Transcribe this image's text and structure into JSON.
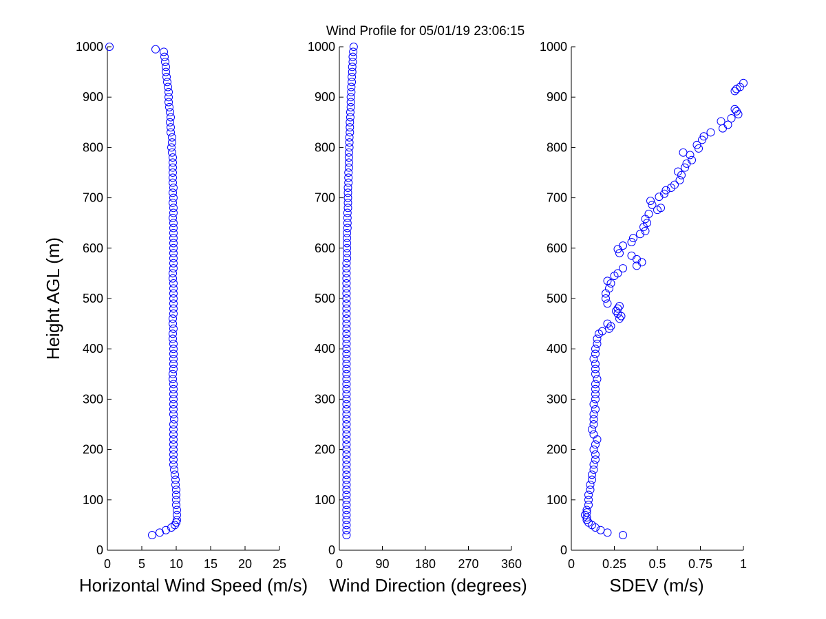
{
  "title": "Wind Profile for  05/01/19 23:06:15",
  "colors": {
    "marker": "#0000ff",
    "axis": "#000000",
    "background": "#ffffff"
  },
  "chart_data": [
    {
      "type": "scatter",
      "id": "speed",
      "xlabel": "Horizontal Wind Speed (m/s)",
      "ylabel": "Height AGL (m)",
      "xlim": [
        0,
        25
      ],
      "ylim": [
        0,
        1000
      ],
      "xticks": [
        "0",
        "5",
        "10",
        "15",
        "20",
        "25"
      ],
      "yticks": [
        "0",
        "100",
        "200",
        "300",
        "400",
        "500",
        "600",
        "700",
        "800",
        "900",
        "1000"
      ],
      "grid": false,
      "marker": "open-circle",
      "points": [
        [
          6.5,
          30
        ],
        [
          7.6,
          35
        ],
        [
          8.5,
          40
        ],
        [
          9.3,
          45
        ],
        [
          9.8,
          50
        ],
        [
          10.0,
          55
        ],
        [
          10.1,
          60
        ],
        [
          10.1,
          70
        ],
        [
          10.1,
          80
        ],
        [
          10.0,
          90
        ],
        [
          10.0,
          100
        ],
        [
          10.0,
          110
        ],
        [
          10.0,
          120
        ],
        [
          9.9,
          130
        ],
        [
          9.9,
          140
        ],
        [
          9.8,
          150
        ],
        [
          9.7,
          160
        ],
        [
          9.6,
          170
        ],
        [
          9.6,
          180
        ],
        [
          9.6,
          190
        ],
        [
          9.6,
          200
        ],
        [
          9.6,
          210
        ],
        [
          9.6,
          220
        ],
        [
          9.6,
          230
        ],
        [
          9.6,
          240
        ],
        [
          9.6,
          250
        ],
        [
          9.7,
          260
        ],
        [
          9.6,
          270
        ],
        [
          9.6,
          280
        ],
        [
          9.6,
          290
        ],
        [
          9.6,
          300
        ],
        [
          9.6,
          310
        ],
        [
          9.6,
          320
        ],
        [
          9.6,
          330
        ],
        [
          9.5,
          340
        ],
        [
          9.5,
          350
        ],
        [
          9.6,
          360
        ],
        [
          9.6,
          370
        ],
        [
          9.6,
          380
        ],
        [
          9.6,
          390
        ],
        [
          9.6,
          400
        ],
        [
          9.6,
          410
        ],
        [
          9.5,
          420
        ],
        [
          9.5,
          430
        ],
        [
          9.6,
          440
        ],
        [
          9.5,
          450
        ],
        [
          9.5,
          460
        ],
        [
          9.6,
          470
        ],
        [
          9.6,
          480
        ],
        [
          9.6,
          490
        ],
        [
          9.6,
          500
        ],
        [
          9.6,
          510
        ],
        [
          9.6,
          520
        ],
        [
          9.6,
          530
        ],
        [
          9.5,
          540
        ],
        [
          9.5,
          550
        ],
        [
          9.6,
          560
        ],
        [
          9.6,
          570
        ],
        [
          9.6,
          580
        ],
        [
          9.6,
          590
        ],
        [
          9.6,
          600
        ],
        [
          9.6,
          610
        ],
        [
          9.6,
          620
        ],
        [
          9.6,
          630
        ],
        [
          9.6,
          640
        ],
        [
          9.6,
          650
        ],
        [
          9.5,
          660
        ],
        [
          9.6,
          670
        ],
        [
          9.6,
          680
        ],
        [
          9.5,
          690
        ],
        [
          9.6,
          700
        ],
        [
          9.5,
          710
        ],
        [
          9.6,
          720
        ],
        [
          9.5,
          730
        ],
        [
          9.5,
          740
        ],
        [
          9.5,
          750
        ],
        [
          9.5,
          760
        ],
        [
          9.5,
          770
        ],
        [
          9.5,
          780
        ],
        [
          9.4,
          790
        ],
        [
          9.3,
          800
        ],
        [
          9.4,
          810
        ],
        [
          9.4,
          820
        ],
        [
          9.2,
          830
        ],
        [
          9.2,
          840
        ],
        [
          9.1,
          850
        ],
        [
          9.2,
          860
        ],
        [
          9.1,
          870
        ],
        [
          9.0,
          880
        ],
        [
          8.9,
          890
        ],
        [
          8.9,
          900
        ],
        [
          8.9,
          910
        ],
        [
          8.8,
          920
        ],
        [
          8.7,
          930
        ],
        [
          8.6,
          940
        ],
        [
          8.5,
          950
        ],
        [
          8.5,
          960
        ],
        [
          8.4,
          970
        ],
        [
          8.3,
          980
        ],
        [
          8.2,
          990
        ],
        [
          7.0,
          995
        ],
        [
          0.3,
          1000
        ]
      ]
    },
    {
      "type": "scatter",
      "id": "direction",
      "xlabel": "Wind Direction (degrees)",
      "ylabel": "",
      "xlim": [
        0,
        360
      ],
      "ylim": [
        0,
        1000
      ],
      "xticks": [
        "0",
        "90",
        "180",
        "270",
        "360"
      ],
      "yticks": [
        "0",
        "100",
        "200",
        "300",
        "400",
        "500",
        "600",
        "700",
        "800",
        "900",
        "1000"
      ],
      "grid": false,
      "marker": "open-circle",
      "points": [
        [
          15,
          30
        ],
        [
          15,
          40
        ],
        [
          15,
          50
        ],
        [
          15,
          60
        ],
        [
          15,
          70
        ],
        [
          15,
          80
        ],
        [
          15,
          90
        ],
        [
          15,
          100
        ],
        [
          15,
          110
        ],
        [
          15,
          120
        ],
        [
          15,
          130
        ],
        [
          15,
          140
        ],
        [
          15,
          150
        ],
        [
          15,
          160
        ],
        [
          15,
          170
        ],
        [
          15,
          180
        ],
        [
          15,
          190
        ],
        [
          15,
          200
        ],
        [
          15,
          210
        ],
        [
          15,
          220
        ],
        [
          15,
          230
        ],
        [
          15,
          240
        ],
        [
          15,
          250
        ],
        [
          15,
          260
        ],
        [
          15,
          270
        ],
        [
          15,
          280
        ],
        [
          15,
          290
        ],
        [
          15,
          300
        ],
        [
          15,
          310
        ],
        [
          15,
          320
        ],
        [
          15,
          330
        ],
        [
          15,
          340
        ],
        [
          15,
          350
        ],
        [
          15,
          360
        ],
        [
          15,
          370
        ],
        [
          15,
          380
        ],
        [
          15,
          390
        ],
        [
          15,
          400
        ],
        [
          15,
          410
        ],
        [
          15,
          420
        ],
        [
          15,
          430
        ],
        [
          15,
          440
        ],
        [
          15,
          450
        ],
        [
          15,
          460
        ],
        [
          15,
          470
        ],
        [
          15,
          480
        ],
        [
          15,
          490
        ],
        [
          15,
          500
        ],
        [
          15,
          510
        ],
        [
          15,
          520
        ],
        [
          15,
          530
        ],
        [
          15,
          540
        ],
        [
          15,
          550
        ],
        [
          15,
          560
        ],
        [
          15,
          570
        ],
        [
          16,
          580
        ],
        [
          16,
          590
        ],
        [
          16,
          600
        ],
        [
          16,
          610
        ],
        [
          16,
          620
        ],
        [
          16,
          630
        ],
        [
          17,
          640
        ],
        [
          17,
          650
        ],
        [
          17,
          660
        ],
        [
          17,
          670
        ],
        [
          18,
          680
        ],
        [
          18,
          690
        ],
        [
          18,
          700
        ],
        [
          18,
          710
        ],
        [
          18,
          720
        ],
        [
          19,
          730
        ],
        [
          19,
          740
        ],
        [
          19,
          750
        ],
        [
          20,
          760
        ],
        [
          20,
          770
        ],
        [
          20,
          780
        ],
        [
          20,
          790
        ],
        [
          21,
          800
        ],
        [
          21,
          810
        ],
        [
          21,
          820
        ],
        [
          22,
          830
        ],
        [
          22,
          840
        ],
        [
          22,
          850
        ],
        [
          23,
          860
        ],
        [
          23,
          870
        ],
        [
          24,
          880
        ],
        [
          24,
          890
        ],
        [
          24,
          900
        ],
        [
          25,
          910
        ],
        [
          25,
          920
        ],
        [
          26,
          930
        ],
        [
          26,
          940
        ],
        [
          27,
          950
        ],
        [
          27,
          960
        ],
        [
          28,
          970
        ],
        [
          28,
          980
        ],
        [
          29,
          990
        ],
        [
          30,
          1000
        ]
      ]
    },
    {
      "type": "scatter",
      "id": "sdev",
      "xlabel": "SDEV  (m/s)",
      "ylabel": "",
      "xlim": [
        0,
        1
      ],
      "ylim": [
        0,
        1000
      ],
      "xticks": [
        "0",
        "0.25",
        "0.5",
        "0.75",
        "1"
      ],
      "yticks": [
        "0",
        "100",
        "200",
        "300",
        "400",
        "500",
        "600",
        "700",
        "800",
        "900",
        "1000"
      ],
      "grid": false,
      "marker": "open-circle",
      "points": [
        [
          0.3,
          30
        ],
        [
          0.21,
          35
        ],
        [
          0.17,
          40
        ],
        [
          0.14,
          45
        ],
        [
          0.12,
          50
        ],
        [
          0.1,
          55
        ],
        [
          0.09,
          60
        ],
        [
          0.09,
          65
        ],
        [
          0.08,
          70
        ],
        [
          0.09,
          75
        ],
        [
          0.09,
          80
        ],
        [
          0.1,
          90
        ],
        [
          0.1,
          100
        ],
        [
          0.1,
          110
        ],
        [
          0.11,
          120
        ],
        [
          0.11,
          130
        ],
        [
          0.12,
          140
        ],
        [
          0.12,
          150
        ],
        [
          0.13,
          160
        ],
        [
          0.13,
          170
        ],
        [
          0.14,
          180
        ],
        [
          0.14,
          190
        ],
        [
          0.13,
          200
        ],
        [
          0.14,
          210
        ],
        [
          0.15,
          220
        ],
        [
          0.13,
          230
        ],
        [
          0.12,
          240
        ],
        [
          0.13,
          250
        ],
        [
          0.13,
          260
        ],
        [
          0.13,
          270
        ],
        [
          0.14,
          280
        ],
        [
          0.13,
          290
        ],
        [
          0.14,
          300
        ],
        [
          0.14,
          310
        ],
        [
          0.14,
          320
        ],
        [
          0.14,
          330
        ],
        [
          0.15,
          340
        ],
        [
          0.14,
          350
        ],
        [
          0.14,
          360
        ],
        [
          0.14,
          370
        ],
        [
          0.13,
          380
        ],
        [
          0.14,
          390
        ],
        [
          0.14,
          400
        ],
        [
          0.15,
          410
        ],
        [
          0.15,
          420
        ],
        [
          0.16,
          430
        ],
        [
          0.18,
          435
        ],
        [
          0.22,
          440
        ],
        [
          0.23,
          445
        ],
        [
          0.21,
          450
        ],
        [
          0.28,
          460
        ],
        [
          0.29,
          465
        ],
        [
          0.27,
          470
        ],
        [
          0.26,
          475
        ],
        [
          0.27,
          480
        ],
        [
          0.28,
          485
        ],
        [
          0.21,
          490
        ],
        [
          0.2,
          500
        ],
        [
          0.2,
          510
        ],
        [
          0.22,
          520
        ],
        [
          0.23,
          530
        ],
        [
          0.21,
          535
        ],
        [
          0.25,
          545
        ],
        [
          0.27,
          550
        ],
        [
          0.3,
          560
        ],
        [
          0.38,
          565
        ],
        [
          0.41,
          572
        ],
        [
          0.38,
          578
        ],
        [
          0.35,
          585
        ],
        [
          0.28,
          590
        ],
        [
          0.27,
          598
        ],
        [
          0.3,
          605
        ],
        [
          0.35,
          612
        ],
        [
          0.36,
          620
        ],
        [
          0.4,
          628
        ],
        [
          0.43,
          634
        ],
        [
          0.42,
          642
        ],
        [
          0.44,
          650
        ],
        [
          0.43,
          658
        ],
        [
          0.45,
          668
        ],
        [
          0.5,
          676
        ],
        [
          0.52,
          680
        ],
        [
          0.47,
          686
        ],
        [
          0.46,
          694
        ],
        [
          0.51,
          702
        ],
        [
          0.54,
          708
        ],
        [
          0.55,
          715
        ],
        [
          0.58,
          720
        ],
        [
          0.6,
          726
        ],
        [
          0.63,
          735
        ],
        [
          0.64,
          745
        ],
        [
          0.62,
          752
        ],
        [
          0.66,
          760
        ],
        [
          0.67,
          768
        ],
        [
          0.7,
          775
        ],
        [
          0.69,
          785
        ],
        [
          0.65,
          790
        ],
        [
          0.74,
          798
        ],
        [
          0.73,
          805
        ],
        [
          0.76,
          815
        ],
        [
          0.77,
          822
        ],
        [
          0.81,
          830
        ],
        [
          0.88,
          838
        ],
        [
          0.91,
          845
        ],
        [
          0.87,
          852
        ],
        [
          0.93,
          858
        ],
        [
          0.97,
          866
        ],
        [
          0.96,
          872
        ],
        [
          0.95,
          876
        ],
        [
          0.95,
          912
        ],
        [
          0.96,
          916
        ],
        [
          0.98,
          920
        ],
        [
          1.0,
          928
        ]
      ]
    }
  ]
}
